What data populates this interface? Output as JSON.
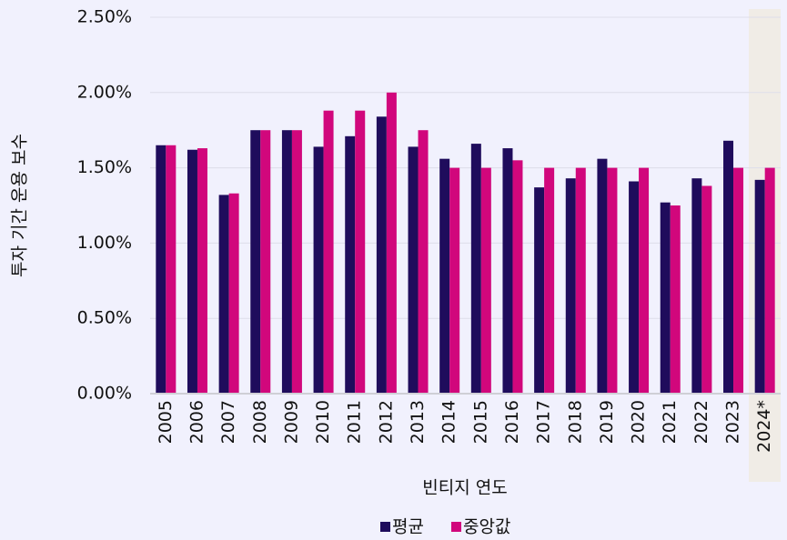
{
  "chart_data": {
    "type": "bar",
    "y_label": "투자 기간 운용 보수",
    "x_label": "빈티지 연도",
    "categories": [
      "2005",
      "2006",
      "2007",
      "2008",
      "2009",
      "2010",
      "2011",
      "2012",
      "2013",
      "2014",
      "2015",
      "2016",
      "2017",
      "2018",
      "2019",
      "2020",
      "2021",
      "2022",
      "2023",
      "2024*"
    ],
    "series": [
      {
        "name": "평균",
        "color": "#1f0c5c",
        "values": [
          1.65,
          1.62,
          1.32,
          1.75,
          1.75,
          1.64,
          1.71,
          1.84,
          1.64,
          1.56,
          1.66,
          1.63,
          1.37,
          1.43,
          1.56,
          1.41,
          1.27,
          1.43,
          1.68,
          1.42
        ]
      },
      {
        "name": "중앙값",
        "color": "#d1077c",
        "values": [
          1.65,
          1.63,
          1.33,
          1.75,
          1.75,
          1.88,
          1.88,
          2.0,
          1.75,
          1.5,
          1.5,
          1.55,
          1.5,
          1.5,
          1.5,
          1.5,
          1.25,
          1.38,
          1.5,
          1.5
        ]
      }
    ],
    "ylim": [
      0,
      2.5
    ],
    "yticks": [
      {
        "value": 0,
        "label": "0.00%"
      },
      {
        "value": 0.5,
        "label": "0.50%"
      },
      {
        "value": 1,
        "label": "1.00%"
      },
      {
        "value": 1.5,
        "label": "1.50%"
      },
      {
        "value": 2,
        "label": "2.00%"
      },
      {
        "value": 2.5,
        "label": "2.50%"
      }
    ],
    "grid": true,
    "legend": "bottom"
  }
}
